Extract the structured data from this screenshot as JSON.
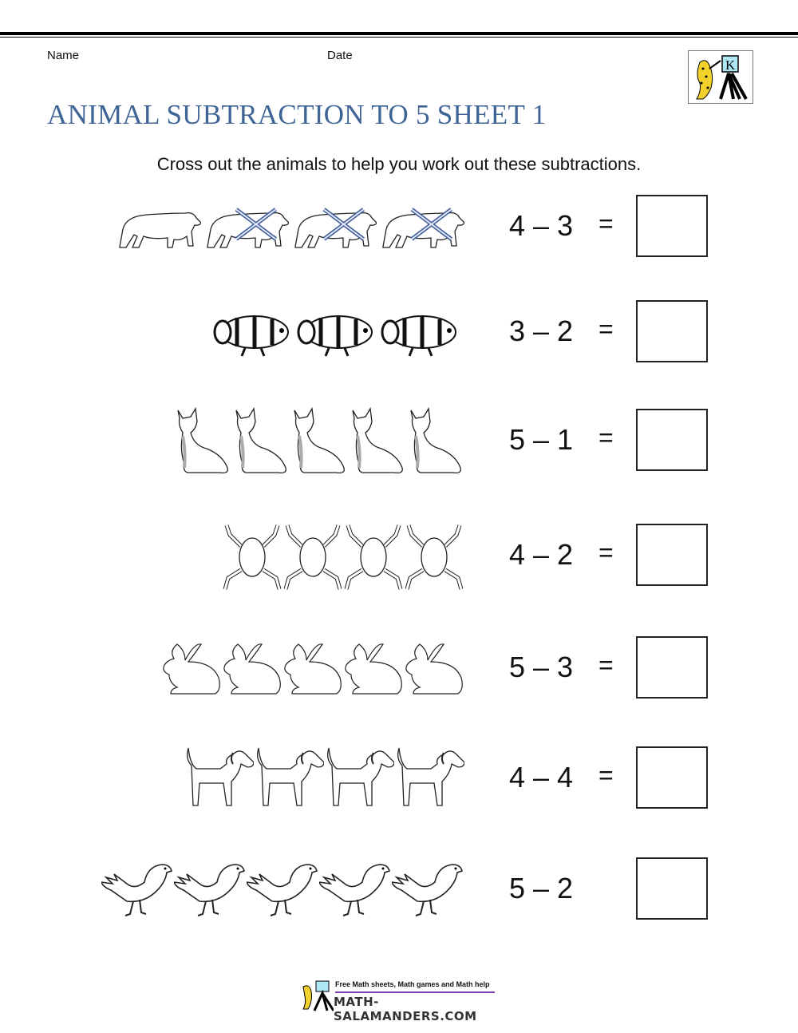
{
  "header": {
    "name_label": "Name",
    "date_label": "Date",
    "logo_letter": "K"
  },
  "title": "ANIMAL SUBTRACTION TO 5 SHEET 1",
  "instruction": "Cross out the animals to help you work out these subtractions.",
  "colors": {
    "title": "#3f6496",
    "cross": "#3f5a9a",
    "footer_line": "#7b3fb0"
  },
  "problems": [
    {
      "animal": "bear",
      "count": 4,
      "crossed": 3,
      "equation": "4 – 3",
      "equals": "="
    },
    {
      "animal": "clownfish",
      "count": 3,
      "crossed": 0,
      "equation": "3 – 2",
      "equals": "="
    },
    {
      "animal": "cat",
      "count": 5,
      "crossed": 0,
      "equation": "5 – 1",
      "equals": "="
    },
    {
      "animal": "frog",
      "count": 4,
      "crossed": 0,
      "equation": "4 – 2",
      "equals": "="
    },
    {
      "animal": "rabbit",
      "count": 5,
      "crossed": 0,
      "equation": "5 – 3",
      "equals": "="
    },
    {
      "animal": "dog",
      "count": 4,
      "crossed": 0,
      "equation": "4 – 4",
      "equals": "="
    },
    {
      "animal": "bird",
      "count": 5,
      "crossed": 0,
      "equation": "5 – 2",
      "equals": ""
    }
  ],
  "footer": {
    "tagline": "Free Math sheets, Math games and Math help",
    "site": "MATH-SALAMANDERS.COM"
  }
}
